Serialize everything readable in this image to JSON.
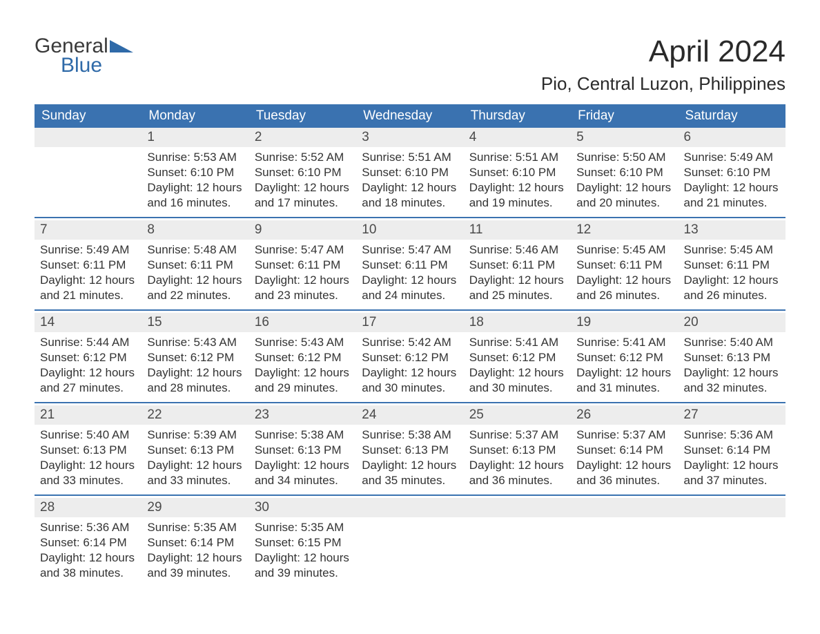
{
  "logo": {
    "general": "General",
    "blue": "Blue",
    "shape_color": "#2f6aa8"
  },
  "title": {
    "month": "April 2024",
    "location": "Pio, Central Luzon, Philippines"
  },
  "colors": {
    "header_bg": "#3a72b0",
    "header_text": "#ffffff",
    "daynum_bg": "#ededed",
    "text": "#333333",
    "rule": "#3a72b0",
    "page_bg": "#ffffff"
  },
  "calendar": {
    "day_headers": [
      "Sunday",
      "Monday",
      "Tuesday",
      "Wednesday",
      "Thursday",
      "Friday",
      "Saturday"
    ],
    "weeks": [
      [
        null,
        {
          "n": "1",
          "sunrise": "Sunrise: 5:53 AM",
          "sunset": "Sunset: 6:10 PM",
          "daylight": "Daylight: 12 hours and 16 minutes."
        },
        {
          "n": "2",
          "sunrise": "Sunrise: 5:52 AM",
          "sunset": "Sunset: 6:10 PM",
          "daylight": "Daylight: 12 hours and 17 minutes."
        },
        {
          "n": "3",
          "sunrise": "Sunrise: 5:51 AM",
          "sunset": "Sunset: 6:10 PM",
          "daylight": "Daylight: 12 hours and 18 minutes."
        },
        {
          "n": "4",
          "sunrise": "Sunrise: 5:51 AM",
          "sunset": "Sunset: 6:10 PM",
          "daylight": "Daylight: 12 hours and 19 minutes."
        },
        {
          "n": "5",
          "sunrise": "Sunrise: 5:50 AM",
          "sunset": "Sunset: 6:10 PM",
          "daylight": "Daylight: 12 hours and 20 minutes."
        },
        {
          "n": "6",
          "sunrise": "Sunrise: 5:49 AM",
          "sunset": "Sunset: 6:10 PM",
          "daylight": "Daylight: 12 hours and 21 minutes."
        }
      ],
      [
        {
          "n": "7",
          "sunrise": "Sunrise: 5:49 AM",
          "sunset": "Sunset: 6:11 PM",
          "daylight": "Daylight: 12 hours and 21 minutes."
        },
        {
          "n": "8",
          "sunrise": "Sunrise: 5:48 AM",
          "sunset": "Sunset: 6:11 PM",
          "daylight": "Daylight: 12 hours and 22 minutes."
        },
        {
          "n": "9",
          "sunrise": "Sunrise: 5:47 AM",
          "sunset": "Sunset: 6:11 PM",
          "daylight": "Daylight: 12 hours and 23 minutes."
        },
        {
          "n": "10",
          "sunrise": "Sunrise: 5:47 AM",
          "sunset": "Sunset: 6:11 PM",
          "daylight": "Daylight: 12 hours and 24 minutes."
        },
        {
          "n": "11",
          "sunrise": "Sunrise: 5:46 AM",
          "sunset": "Sunset: 6:11 PM",
          "daylight": "Daylight: 12 hours and 25 minutes."
        },
        {
          "n": "12",
          "sunrise": "Sunrise: 5:45 AM",
          "sunset": "Sunset: 6:11 PM",
          "daylight": "Daylight: 12 hours and 26 minutes."
        },
        {
          "n": "13",
          "sunrise": "Sunrise: 5:45 AM",
          "sunset": "Sunset: 6:11 PM",
          "daylight": "Daylight: 12 hours and 26 minutes."
        }
      ],
      [
        {
          "n": "14",
          "sunrise": "Sunrise: 5:44 AM",
          "sunset": "Sunset: 6:12 PM",
          "daylight": "Daylight: 12 hours and 27 minutes."
        },
        {
          "n": "15",
          "sunrise": "Sunrise: 5:43 AM",
          "sunset": "Sunset: 6:12 PM",
          "daylight": "Daylight: 12 hours and 28 minutes."
        },
        {
          "n": "16",
          "sunrise": "Sunrise: 5:43 AM",
          "sunset": "Sunset: 6:12 PM",
          "daylight": "Daylight: 12 hours and 29 minutes."
        },
        {
          "n": "17",
          "sunrise": "Sunrise: 5:42 AM",
          "sunset": "Sunset: 6:12 PM",
          "daylight": "Daylight: 12 hours and 30 minutes."
        },
        {
          "n": "18",
          "sunrise": "Sunrise: 5:41 AM",
          "sunset": "Sunset: 6:12 PM",
          "daylight": "Daylight: 12 hours and 30 minutes."
        },
        {
          "n": "19",
          "sunrise": "Sunrise: 5:41 AM",
          "sunset": "Sunset: 6:12 PM",
          "daylight": "Daylight: 12 hours and 31 minutes."
        },
        {
          "n": "20",
          "sunrise": "Sunrise: 5:40 AM",
          "sunset": "Sunset: 6:13 PM",
          "daylight": "Daylight: 12 hours and 32 minutes."
        }
      ],
      [
        {
          "n": "21",
          "sunrise": "Sunrise: 5:40 AM",
          "sunset": "Sunset: 6:13 PM",
          "daylight": "Daylight: 12 hours and 33 minutes."
        },
        {
          "n": "22",
          "sunrise": "Sunrise: 5:39 AM",
          "sunset": "Sunset: 6:13 PM",
          "daylight": "Daylight: 12 hours and 33 minutes."
        },
        {
          "n": "23",
          "sunrise": "Sunrise: 5:38 AM",
          "sunset": "Sunset: 6:13 PM",
          "daylight": "Daylight: 12 hours and 34 minutes."
        },
        {
          "n": "24",
          "sunrise": "Sunrise: 5:38 AM",
          "sunset": "Sunset: 6:13 PM",
          "daylight": "Daylight: 12 hours and 35 minutes."
        },
        {
          "n": "25",
          "sunrise": "Sunrise: 5:37 AM",
          "sunset": "Sunset: 6:13 PM",
          "daylight": "Daylight: 12 hours and 36 minutes."
        },
        {
          "n": "26",
          "sunrise": "Sunrise: 5:37 AM",
          "sunset": "Sunset: 6:14 PM",
          "daylight": "Daylight: 12 hours and 36 minutes."
        },
        {
          "n": "27",
          "sunrise": "Sunrise: 5:36 AM",
          "sunset": "Sunset: 6:14 PM",
          "daylight": "Daylight: 12 hours and 37 minutes."
        }
      ],
      [
        {
          "n": "28",
          "sunrise": "Sunrise: 5:36 AM",
          "sunset": "Sunset: 6:14 PM",
          "daylight": "Daylight: 12 hours and 38 minutes."
        },
        {
          "n": "29",
          "sunrise": "Sunrise: 5:35 AM",
          "sunset": "Sunset: 6:14 PM",
          "daylight": "Daylight: 12 hours and 39 minutes."
        },
        {
          "n": "30",
          "sunrise": "Sunrise: 5:35 AM",
          "sunset": "Sunset: 6:15 PM",
          "daylight": "Daylight: 12 hours and 39 minutes."
        },
        null,
        null,
        null,
        null
      ]
    ]
  }
}
